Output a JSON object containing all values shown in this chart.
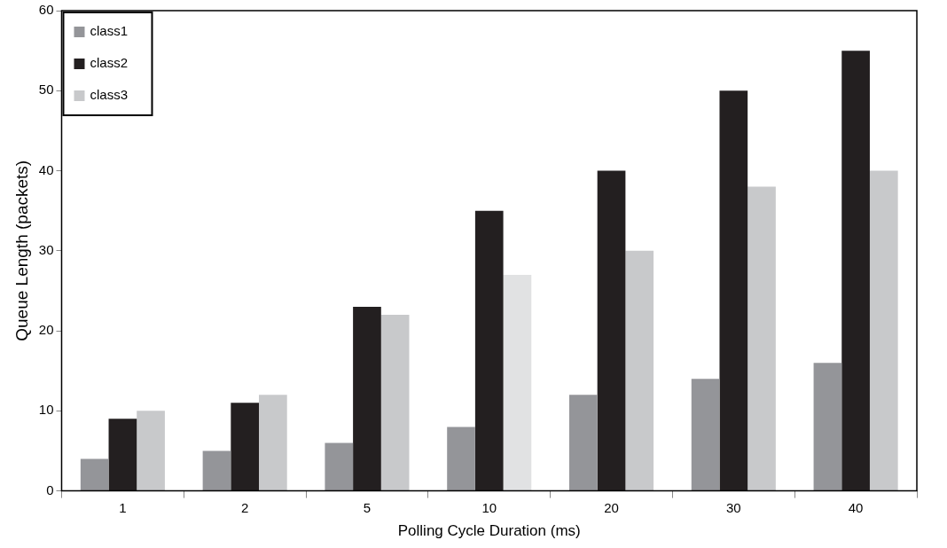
{
  "chart_data": {
    "type": "bar",
    "xlabel": "Polling Cycle Duration (ms)",
    "ylabel": "Queue Length (packets)",
    "categories": [
      "1",
      "2",
      "5",
      "10",
      "20",
      "30",
      "40"
    ],
    "series": [
      {
        "name": "class1",
        "color": "#949599",
        "values": [
          4,
          5,
          6,
          8,
          12,
          14,
          16
        ]
      },
      {
        "name": "class2",
        "color": "#231f20",
        "values": [
          9,
          11,
          23,
          35,
          40,
          50,
          55
        ]
      },
      {
        "name": "class3",
        "color": "#c8c9cb",
        "colors": [
          "#c8c9cb",
          "#c8c9cb",
          "#c8c9cb",
          "#e1e2e3",
          "#c8c9cb",
          "#c8c9cb",
          "#c8c9cb"
        ],
        "values": [
          10,
          12,
          22,
          27,
          30,
          38,
          40
        ]
      }
    ],
    "ylim": [
      0,
      60
    ],
    "yticks": [
      0,
      10,
      20,
      30,
      40,
      50,
      60
    ],
    "grid": false,
    "legend": "top left"
  }
}
